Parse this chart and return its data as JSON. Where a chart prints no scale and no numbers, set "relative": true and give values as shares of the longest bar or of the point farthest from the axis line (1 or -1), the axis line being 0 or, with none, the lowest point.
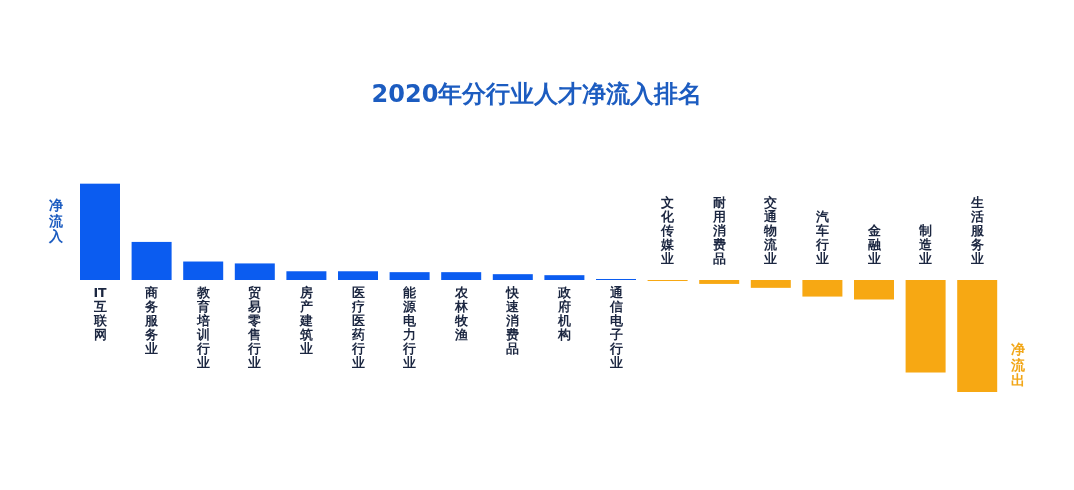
{
  "chart_data": {
    "type": "bar",
    "relative": true,
    "title": "2020年分行业人才净流入排名",
    "ylabel": "净流入",
    "y2label": "净流出",
    "categories": [
      "IT互联网",
      "商务服务业",
      "教育培训行业",
      "贸易零售行业",
      "房产建筑业",
      "医疗医药行业",
      "能源电力行业",
      "农林牧渔",
      "快速消费品",
      "政府机构",
      "通信电子行业",
      "文化传媒业",
      "耐用消费品",
      "交通物流业",
      "汽车行业",
      "金融业",
      "制造业",
      "生活服务业"
    ],
    "values": [
      0.86,
      0.34,
      0.165,
      0.148,
      0.078,
      0.078,
      0.07,
      0.07,
      0.052,
      0.043,
      0.009,
      -0.009,
      -0.035,
      -0.07,
      -0.148,
      -0.174,
      -0.826,
      -1
    ],
    "colors": [
      "#0b5cf0",
      "#0b5cf0",
      "#0b5cf0",
      "#0b5cf0",
      "#0b5cf0",
      "#0b5cf0",
      "#0b5cf0",
      "#0b5cf0",
      "#0b5cf0",
      "#0b5cf0",
      "#0b5cf0",
      "#f7a813",
      "#f7a813",
      "#f7a813",
      "#f7a813",
      "#f7a813",
      "#f7a813",
      "#f7a813"
    ]
  }
}
